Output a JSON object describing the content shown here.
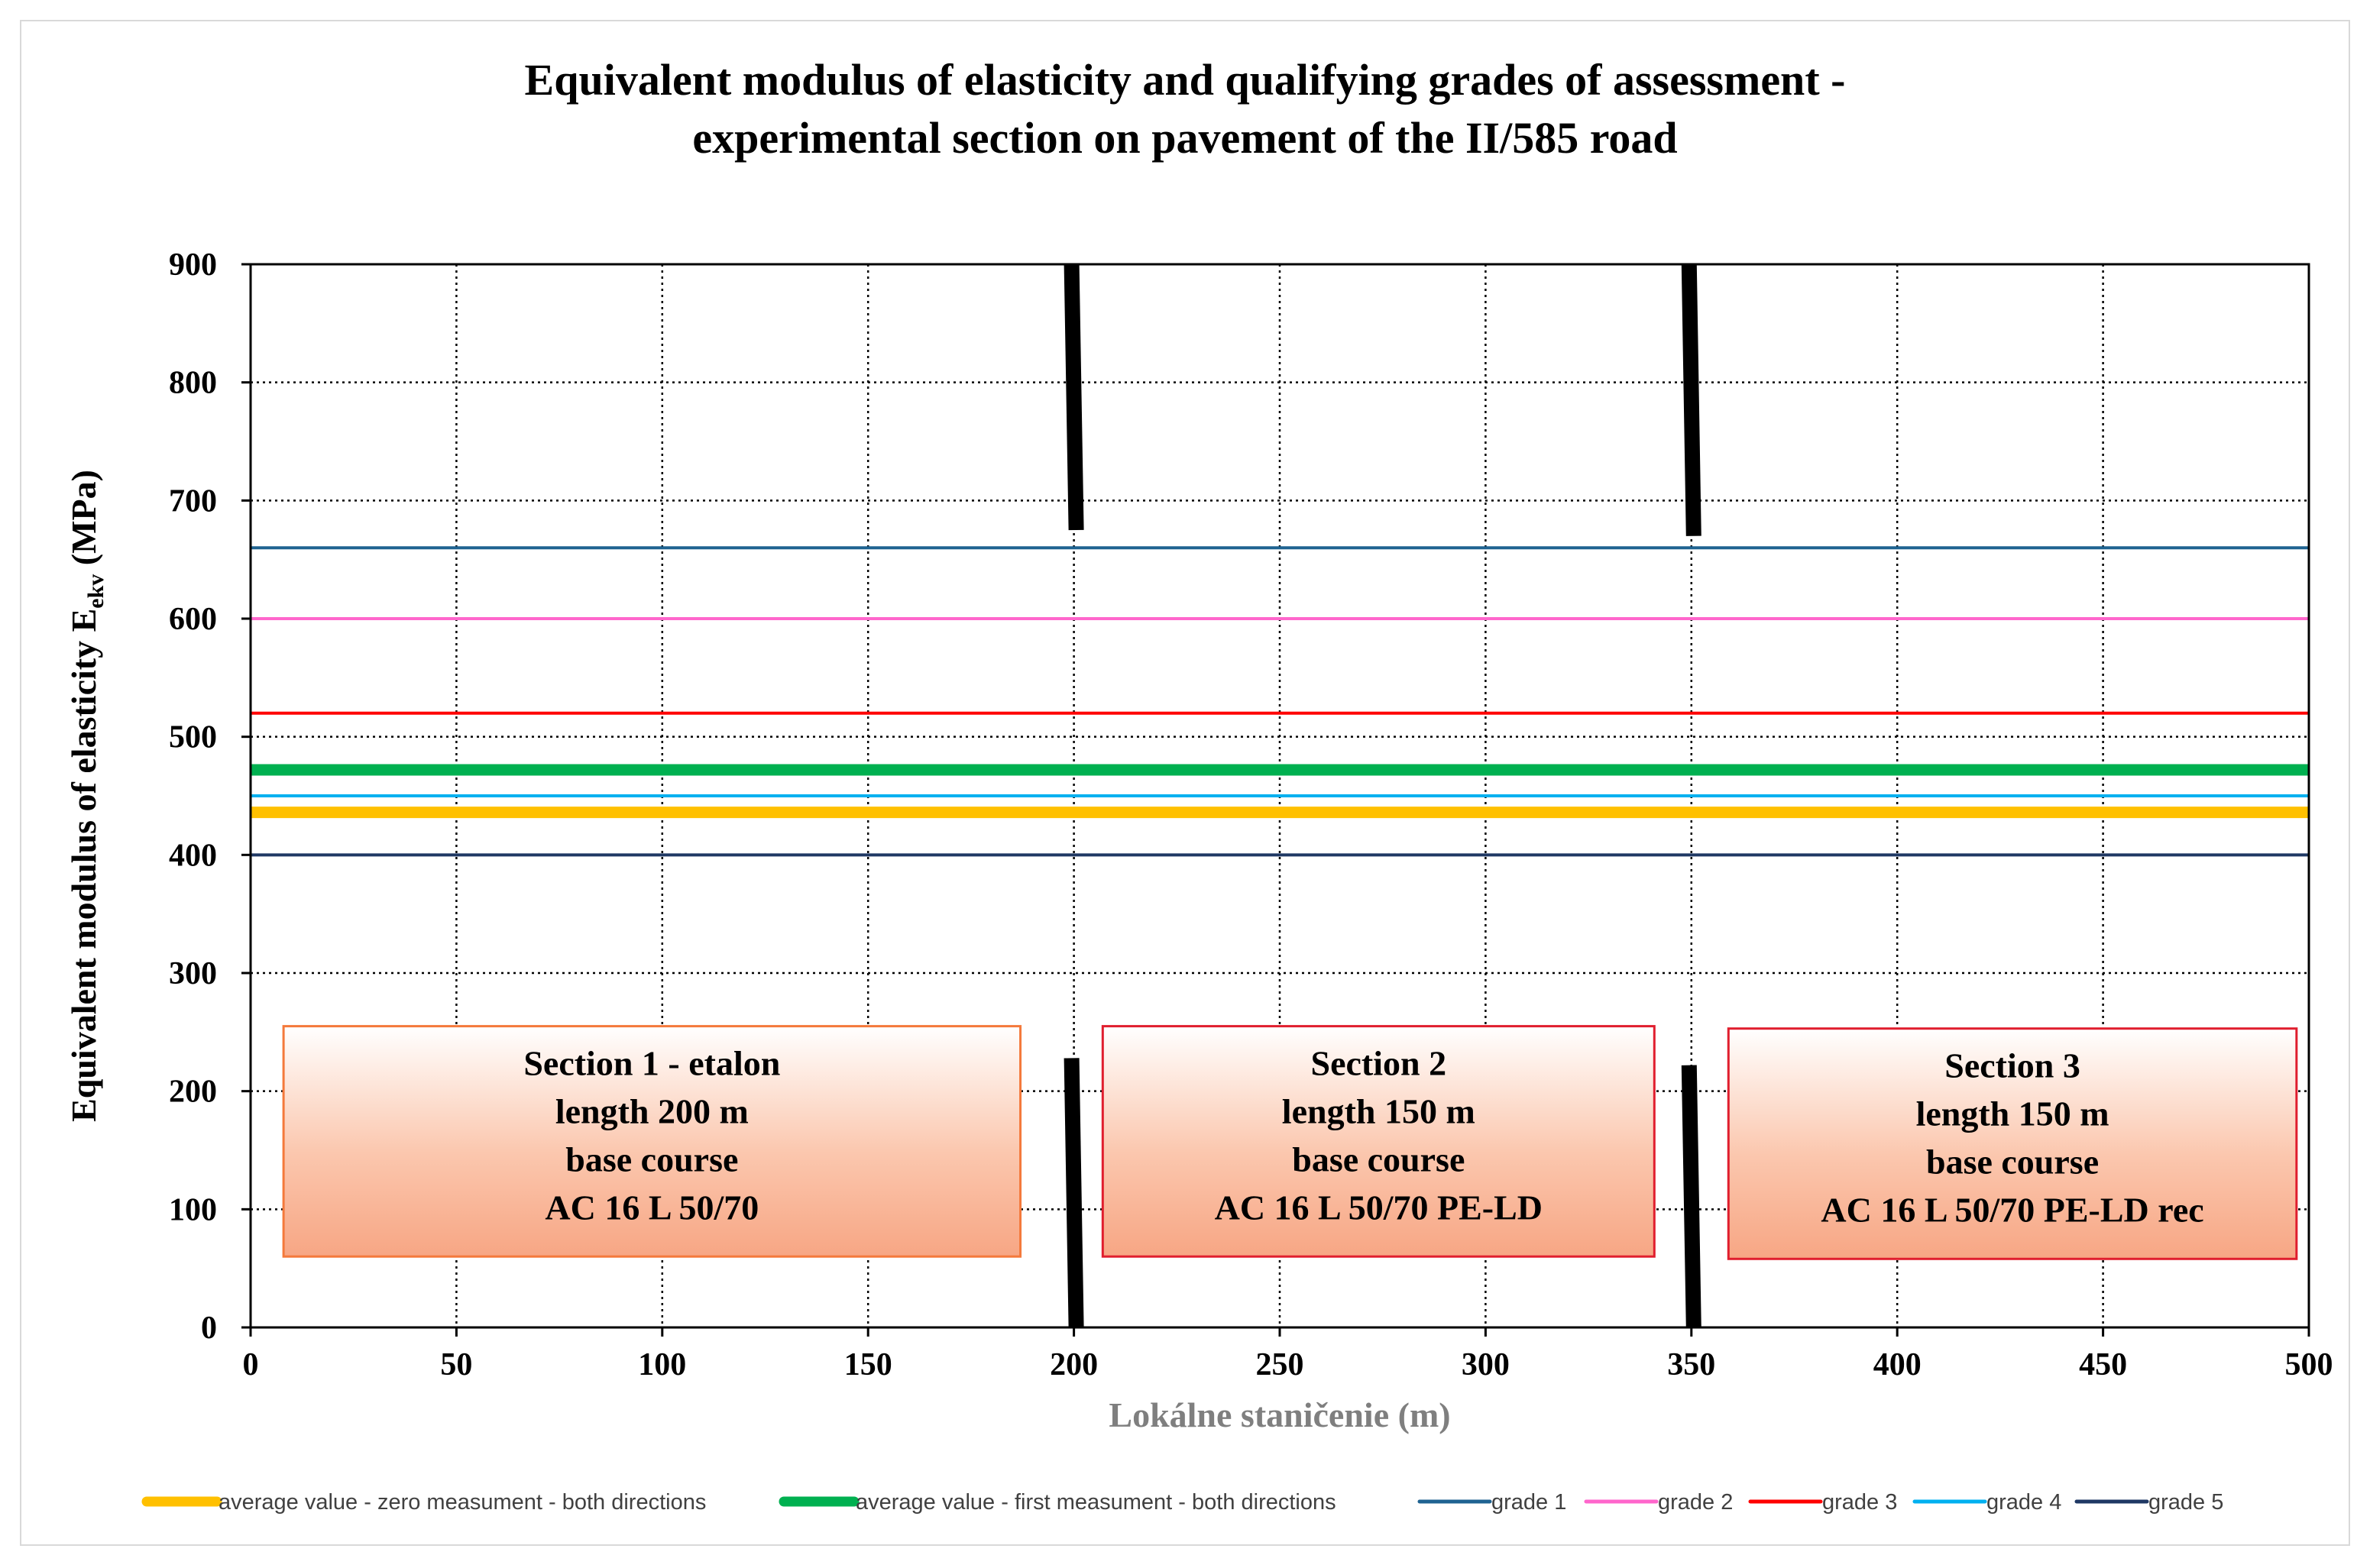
{
  "chart_data": {
    "type": "line",
    "title": [
      "Equivalent modulus of elasticity and qualifying grades of assessment -",
      "experimental section on pavement of the II/585 road"
    ],
    "xlabel": "Lokálne staničenie (m)",
    "ylabel": {
      "main": "Equivalent modulus of elasticity E",
      "sub": "ekv",
      "unit": " (MPa)"
    },
    "xlim": [
      0,
      500
    ],
    "ylim": [
      0,
      900
    ],
    "x_ticks": [
      0,
      50,
      100,
      150,
      200,
      250,
      300,
      350,
      400,
      450,
      500
    ],
    "y_ticks": [
      0,
      100,
      200,
      300,
      400,
      500,
      600,
      700,
      800,
      900
    ],
    "grid": true,
    "legend_position": "bottom",
    "series": [
      {
        "name": "average value - zero measument - both directions",
        "color": "#FFC000",
        "x": [
          0,
          500
        ],
        "values": [
          436,
          436
        ],
        "weight": "thick"
      },
      {
        "name": "average value - first measument - both directions",
        "color": "#00B050",
        "x": [
          0,
          500
        ],
        "values": [
          472,
          472
        ],
        "weight": "thick"
      },
      {
        "name": "grade 1",
        "color": "#1F6391",
        "x": [
          0,
          500
        ],
        "values": [
          660,
          660
        ],
        "weight": "thin"
      },
      {
        "name": "grade 2",
        "color": "#FF66CC",
        "x": [
          0,
          500
        ],
        "values": [
          600,
          600
        ],
        "weight": "thin"
      },
      {
        "name": "grade 3",
        "color": "#FF0000",
        "x": [
          0,
          500
        ],
        "values": [
          520,
          520
        ],
        "weight": "thin"
      },
      {
        "name": "grade 4",
        "color": "#00B0F0",
        "x": [
          0,
          500
        ],
        "values": [
          450,
          450
        ],
        "weight": "thin"
      },
      {
        "name": "grade 5",
        "color": "#1F3864",
        "x": [
          0,
          500
        ],
        "values": [
          400,
          400
        ],
        "weight": "thin"
      }
    ],
    "section_dividers": [
      {
        "x": 200,
        "segments": [
          [
            675,
            900
          ],
          [
            0,
            228
          ]
        ]
      },
      {
        "x": 350,
        "segments": [
          [
            670,
            900
          ],
          [
            0,
            222
          ]
        ]
      }
    ],
    "annotations": [
      {
        "lines": [
          "Section 1 - etalon",
          "length 200 m",
          "base course",
          "AC 16 L  50/70"
        ],
        "border": "#F4793B",
        "x_range": [
          8,
          187
        ],
        "y_range": [
          60,
          255
        ]
      },
      {
        "lines": [
          "Section 2",
          "length 150 m",
          "base course",
          "AC 16 L  50/70 PE-LD"
        ],
        "border": "#E01E2E",
        "x_range": [
          207,
          341
        ],
        "y_range": [
          60,
          255
        ]
      },
      {
        "lines": [
          "Section 3",
          "length 150 m",
          "base course",
          "AC 16 L  50/70 PE-LD rec"
        ],
        "border": "#E01E2E",
        "x_range": [
          359,
          497
        ],
        "y_range": [
          58,
          253
        ]
      }
    ]
  }
}
